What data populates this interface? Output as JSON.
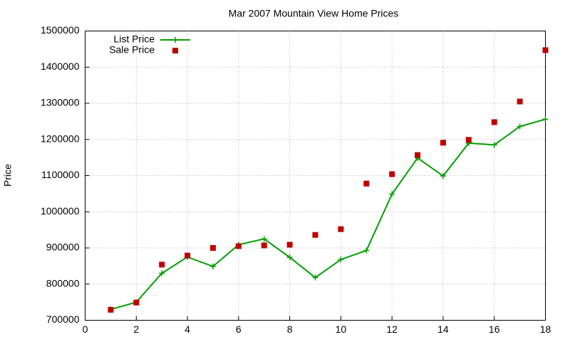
{
  "chart_data": {
    "type": "line",
    "title": "Mar 2007 Mountain View Home Prices",
    "y_label": "Price",
    "x": [
      1,
      2,
      3,
      4,
      5,
      6,
      7,
      8,
      9,
      10,
      11,
      12,
      13,
      14,
      15,
      16,
      17,
      18
    ],
    "series": [
      {
        "name": "List Price",
        "color": "#00a000",
        "line": true,
        "marker": "plus",
        "values": [
          730000,
          750000,
          830000,
          875000,
          849000,
          909000,
          925000,
          874000,
          818000,
          868000,
          893000,
          1049000,
          1149000,
          1099000,
          1190000,
          1185000,
          1236000,
          1256000
        ]
      },
      {
        "name": "Sale Price",
        "color": "#c00000",
        "line": false,
        "marker": "square",
        "values": [
          729000,
          749000,
          854000,
          879000,
          900000,
          905000,
          907000,
          909000,
          936000,
          952000,
          1078000,
          1104000,
          1157000,
          1191000,
          1199000,
          1248000,
          1305000,
          1447000
        ]
      }
    ],
    "xlim": [
      0,
      18
    ],
    "xticks": [
      0,
      2,
      4,
      6,
      8,
      10,
      12,
      14,
      16,
      18
    ],
    "ylim": [
      700000,
      1500000
    ],
    "yticks": [
      700000,
      800000,
      900000,
      1000000,
      1100000,
      1200000,
      1300000,
      1400000,
      1500000
    ],
    "grid": true,
    "legend": "top-left"
  }
}
